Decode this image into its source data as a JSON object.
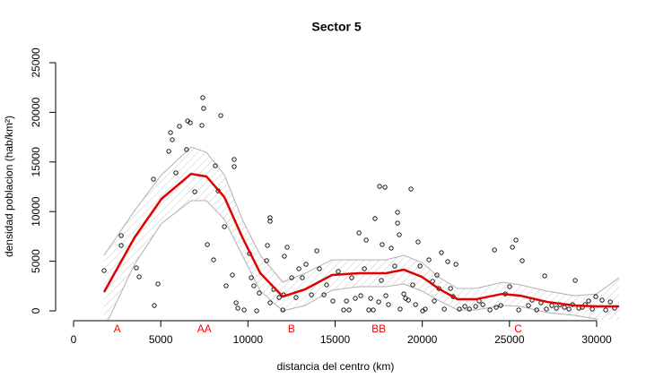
{
  "chart_data": {
    "type": "scatter",
    "title": "Sector 5",
    "x_label": "distancia del centro (km)",
    "y_label": "densidad poblacion (hab/km²)",
    "xlim": [
      -1030,
      31390
    ],
    "ylim": [
      -900,
      26080
    ],
    "xticks": [
      0,
      5000,
      10000,
      15000,
      20000,
      25000,
      30000
    ],
    "yticks": [
      0,
      5000,
      10000,
      15000,
      20000,
      25000
    ],
    "grid": false,
    "points": {
      "color": "#000000",
      "x": [
        1750,
        2730,
        2730,
        3600,
        3760,
        4580,
        4630,
        4840,
        5460,
        5560,
        5660,
        5870,
        6070,
        6480,
        6540,
        6690,
        6950,
        7360,
        7410,
        7460,
        7670,
        8030,
        8130,
        8440,
        8290,
        8650,
        8750,
        9110,
        9210,
        9210,
        9320,
        9420,
        9780,
        10090,
        10190,
        10340,
        10500,
        10650,
        11070,
        11120,
        11270,
        11270,
        11270,
        11480,
        11790,
        12000,
        12040,
        12090,
        12250,
        12510,
        12760,
        12920,
        13120,
        13330,
        13640,
        13950,
        14100,
        14360,
        14510,
        14870,
        15180,
        15490,
        15650,
        15800,
        15950,
        16160,
        16370,
        16470,
        16680,
        16780,
        16930,
        17040,
        17190,
        17290,
        17500,
        17550,
        17650,
        17860,
        17700,
        17910,
        18060,
        18220,
        18420,
        18580,
        18580,
        18680,
        18730,
        18940,
        19040,
        19200,
        19350,
        19450,
        19610,
        19760,
        19870,
        20020,
        20170,
        20380,
        20590,
        20690,
        20840,
        20950,
        21100,
        21260,
        21460,
        21620,
        21770,
        21930,
        22130,
        22440,
        22700,
        23060,
        23260,
        23470,
        23880,
        24140,
        24240,
        24500,
        24760,
        25010,
        25170,
        25370,
        25530,
        25730,
        26090,
        26300,
        26560,
        26810,
        27020,
        27120,
        27430,
        27690,
        27890,
        28150,
        28410,
        28620,
        28770,
        28980,
        29180,
        29340,
        29540,
        29750,
        29950,
        30310,
        30520,
        30780,
        31030
      ],
      "y": [
        4060,
        7580,
        6590,
        4330,
        3430,
        13270,
        540,
        2710,
        16070,
        17960,
        17240,
        13900,
        18590,
        16250,
        19130,
        18950,
        12000,
        18680,
        21480,
        20400,
        6680,
        5140,
        14620,
        19670,
        12090,
        8480,
        2530,
        3610,
        15250,
        14530,
        810,
        270,
        90,
        5780,
        3340,
        2530,
        0,
        1800,
        5050,
        6590,
        9390,
        9030,
        810,
        2170,
        1350,
        90,
        1620,
        5510,
        6410,
        3340,
        1350,
        4240,
        3340,
        4690,
        1620,
        6050,
        4240,
        1620,
        2620,
        990,
        3970,
        90,
        990,
        90,
        3340,
        1260,
        7850,
        1530,
        4240,
        7130,
        90,
        1260,
        90,
        9300,
        900,
        12540,
        3070,
        12450,
        6680,
        1530,
        630,
        6320,
        4510,
        9930,
        8840,
        7670,
        180,
        1710,
        1260,
        1080,
        12270,
        2620,
        630,
        6950,
        4510,
        0,
        180,
        5140,
        2980,
        990,
        3610,
        2260,
        5870,
        180,
        4960,
        2260,
        1440,
        4690,
        180,
        450,
        180,
        450,
        990,
        630,
        90,
        6140,
        360,
        540,
        1710,
        2440,
        6410,
        7130,
        90,
        5050,
        540,
        1080,
        90,
        810,
        3520,
        180,
        540,
        270,
        630,
        360,
        180,
        630,
        3070,
        270,
        360,
        630,
        990,
        180,
        1440,
        1080,
        90,
        900,
        270
      ]
    },
    "smooth": {
      "color": "#e00000",
      "x": [
        1750,
        3500,
        5040,
        6740,
        7620,
        8650,
        9680,
        10710,
        12000,
        13280,
        14820,
        16370,
        17910,
        18940,
        19970,
        21000,
        22030,
        23060,
        24600,
        25630,
        27170,
        28720,
        30000,
        31290
      ],
      "y": [
        1900,
        7400,
        11280,
        13800,
        13540,
        11460,
        7400,
        3790,
        1440,
        2170,
        3610,
        3790,
        3790,
        4150,
        3430,
        2170,
        1170,
        1170,
        1710,
        1530,
        900,
        540,
        450,
        450
      ]
    },
    "band": {
      "color": "#b0b0b0",
      "x": [
        1750,
        3500,
        5040,
        6740,
        7620,
        8650,
        9680,
        10710,
        12000,
        13280,
        14820,
        16370,
        17910,
        18940,
        19970,
        21000,
        22030,
        23060,
        24600,
        25630,
        27170,
        28720,
        30000,
        31290
      ],
      "upper": [
        5600,
        10100,
        13700,
        16500,
        15970,
        13700,
        9200,
        5600,
        2890,
        3790,
        5140,
        5140,
        5140,
        5600,
        4870,
        3340,
        2260,
        2260,
        2890,
        2620,
        1990,
        1530,
        1710,
        3340
      ],
      "lower": [
        -1800,
        4700,
        8800,
        11100,
        11100,
        9200,
        5600,
        2000,
        0,
        540,
        2080,
        2440,
        2440,
        2710,
        2000,
        990,
        90,
        90,
        540,
        450,
        -180,
        -450,
        -810,
        -2400
      ]
    },
    "annotations": [
      {
        "text": "A",
        "x": 2500
      },
      {
        "text": "AA",
        "x": 7500
      },
      {
        "text": "B",
        "x": 12500
      },
      {
        "text": "BB",
        "x": 17500
      },
      {
        "text": "C",
        "x": 25500
      }
    ],
    "annotation_color": "#ff0000"
  }
}
